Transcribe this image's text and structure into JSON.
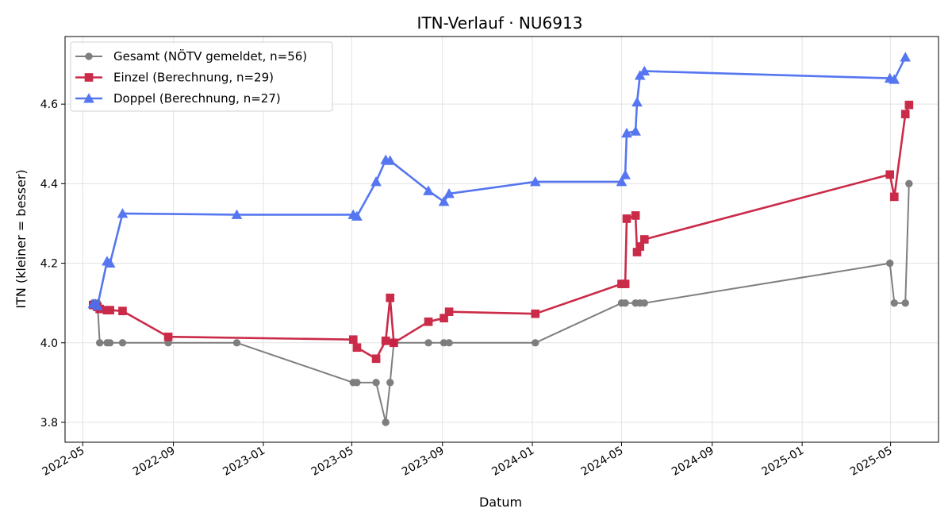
{
  "chart_data": {
    "type": "line",
    "title": "ITN-Verlauf · NU6913",
    "xlabel": "Datum",
    "ylabel": "ITN  (kleiner = besser)",
    "xlim": [
      "2022-04-07",
      "2025-07-05"
    ],
    "ylim": [
      3.75,
      4.77
    ],
    "x_ticks": [
      "2022-05",
      "2022-09",
      "2023-01",
      "2023-05",
      "2023-09",
      "2024-01",
      "2024-05",
      "2024-09",
      "2025-01",
      "2025-05"
    ],
    "y_ticks": [
      3.8,
      4.0,
      4.2,
      4.4,
      4.6
    ],
    "y_tick_labels": [
      "3.8",
      "4.0",
      "4.2",
      "4.4",
      "4.6"
    ],
    "grid": true,
    "legend_position": "upper-left",
    "series": [
      {
        "name": "Gesamt (NÖTV gemeldet, n=56)",
        "color": "#555555",
        "marker": "circle",
        "points": [
          [
            "2022-05-15",
            4.1
          ],
          [
            "2022-05-18",
            4.1
          ],
          [
            "2022-05-21",
            4.1
          ],
          [
            "2022-05-24",
            4.0
          ],
          [
            "2022-06-03",
            4.0
          ],
          [
            "2022-06-07",
            4.0
          ],
          [
            "2022-06-24",
            4.0
          ],
          [
            "2022-08-25",
            4.0
          ],
          [
            "2022-11-26",
            4.0
          ],
          [
            "2023-05-03",
            3.9
          ],
          [
            "2023-05-08",
            3.9
          ],
          [
            "2023-06-03",
            3.9
          ],
          [
            "2023-06-16",
            3.8
          ],
          [
            "2023-06-22",
            3.9
          ],
          [
            "2023-06-27",
            4.0
          ],
          [
            "2023-08-13",
            4.0
          ],
          [
            "2023-09-03",
            4.0
          ],
          [
            "2023-09-10",
            4.0
          ],
          [
            "2024-01-05",
            4.0
          ],
          [
            "2024-05-01",
            4.1
          ],
          [
            "2024-05-06",
            4.1
          ],
          [
            "2024-05-20",
            4.1
          ],
          [
            "2024-05-26",
            4.1
          ],
          [
            "2024-06-01",
            4.1
          ],
          [
            "2025-04-30",
            4.2
          ],
          [
            "2025-05-06",
            4.1
          ],
          [
            "2025-05-21",
            4.1
          ],
          [
            "2025-05-26",
            4.4
          ]
        ]
      },
      {
        "name": "Einzel (Berechnung, n=29)",
        "color": "#c8203f",
        "marker": "square",
        "points": [
          [
            "2022-05-15",
            4.095
          ],
          [
            "2022-05-21",
            4.09
          ],
          [
            "2022-05-24",
            4.085
          ],
          [
            "2022-06-03",
            4.082
          ],
          [
            "2022-06-07",
            4.082
          ],
          [
            "2022-06-24",
            4.08
          ],
          [
            "2022-08-25",
            4.015
          ],
          [
            "2023-05-03",
            4.008
          ],
          [
            "2023-05-08",
            3.988
          ],
          [
            "2023-06-03",
            3.96
          ],
          [
            "2023-06-16",
            4.005
          ],
          [
            "2023-06-22",
            4.113
          ],
          [
            "2023-06-27",
            4.0
          ],
          [
            "2023-08-13",
            4.053
          ],
          [
            "2023-09-03",
            4.062
          ],
          [
            "2023-09-10",
            4.078
          ],
          [
            "2024-01-05",
            4.073
          ],
          [
            "2024-05-01",
            4.148
          ],
          [
            "2024-05-06",
            4.148
          ],
          [
            "2024-05-08",
            4.312
          ],
          [
            "2024-05-20",
            4.32
          ],
          [
            "2024-05-22",
            4.228
          ],
          [
            "2024-05-26",
            4.242
          ],
          [
            "2024-06-01",
            4.26
          ],
          [
            "2025-04-30",
            4.423
          ],
          [
            "2025-05-06",
            4.367
          ],
          [
            "2025-05-21",
            4.575
          ],
          [
            "2025-05-26",
            4.598
          ]
        ]
      },
      {
        "name": "Doppel (Berechnung, n=27)",
        "color": "#4c6ff0",
        "marker": "triangle",
        "points": [
          [
            "2022-05-15",
            4.098
          ],
          [
            "2022-05-18",
            4.098
          ],
          [
            "2022-05-21",
            4.093
          ],
          [
            "2022-06-03",
            4.205
          ],
          [
            "2022-06-07",
            4.2
          ],
          [
            "2022-06-24",
            4.325
          ],
          [
            "2022-11-26",
            4.322
          ],
          [
            "2023-05-03",
            4.322
          ],
          [
            "2023-05-08",
            4.318
          ],
          [
            "2023-06-03",
            4.405
          ],
          [
            "2023-06-16",
            4.46
          ],
          [
            "2023-06-22",
            4.458
          ],
          [
            "2023-08-13",
            4.382
          ],
          [
            "2023-09-03",
            4.355
          ],
          [
            "2023-09-10",
            4.375
          ],
          [
            "2024-01-05",
            4.405
          ],
          [
            "2024-05-01",
            4.405
          ],
          [
            "2024-05-06",
            4.422
          ],
          [
            "2024-05-08",
            4.527
          ],
          [
            "2024-05-20",
            4.532
          ],
          [
            "2024-05-22",
            4.605
          ],
          [
            "2024-05-26",
            4.672
          ],
          [
            "2024-06-01",
            4.683
          ],
          [
            "2025-04-30",
            4.665
          ],
          [
            "2025-05-06",
            4.662
          ],
          [
            "2025-05-21",
            4.718
          ]
        ]
      }
    ]
  }
}
